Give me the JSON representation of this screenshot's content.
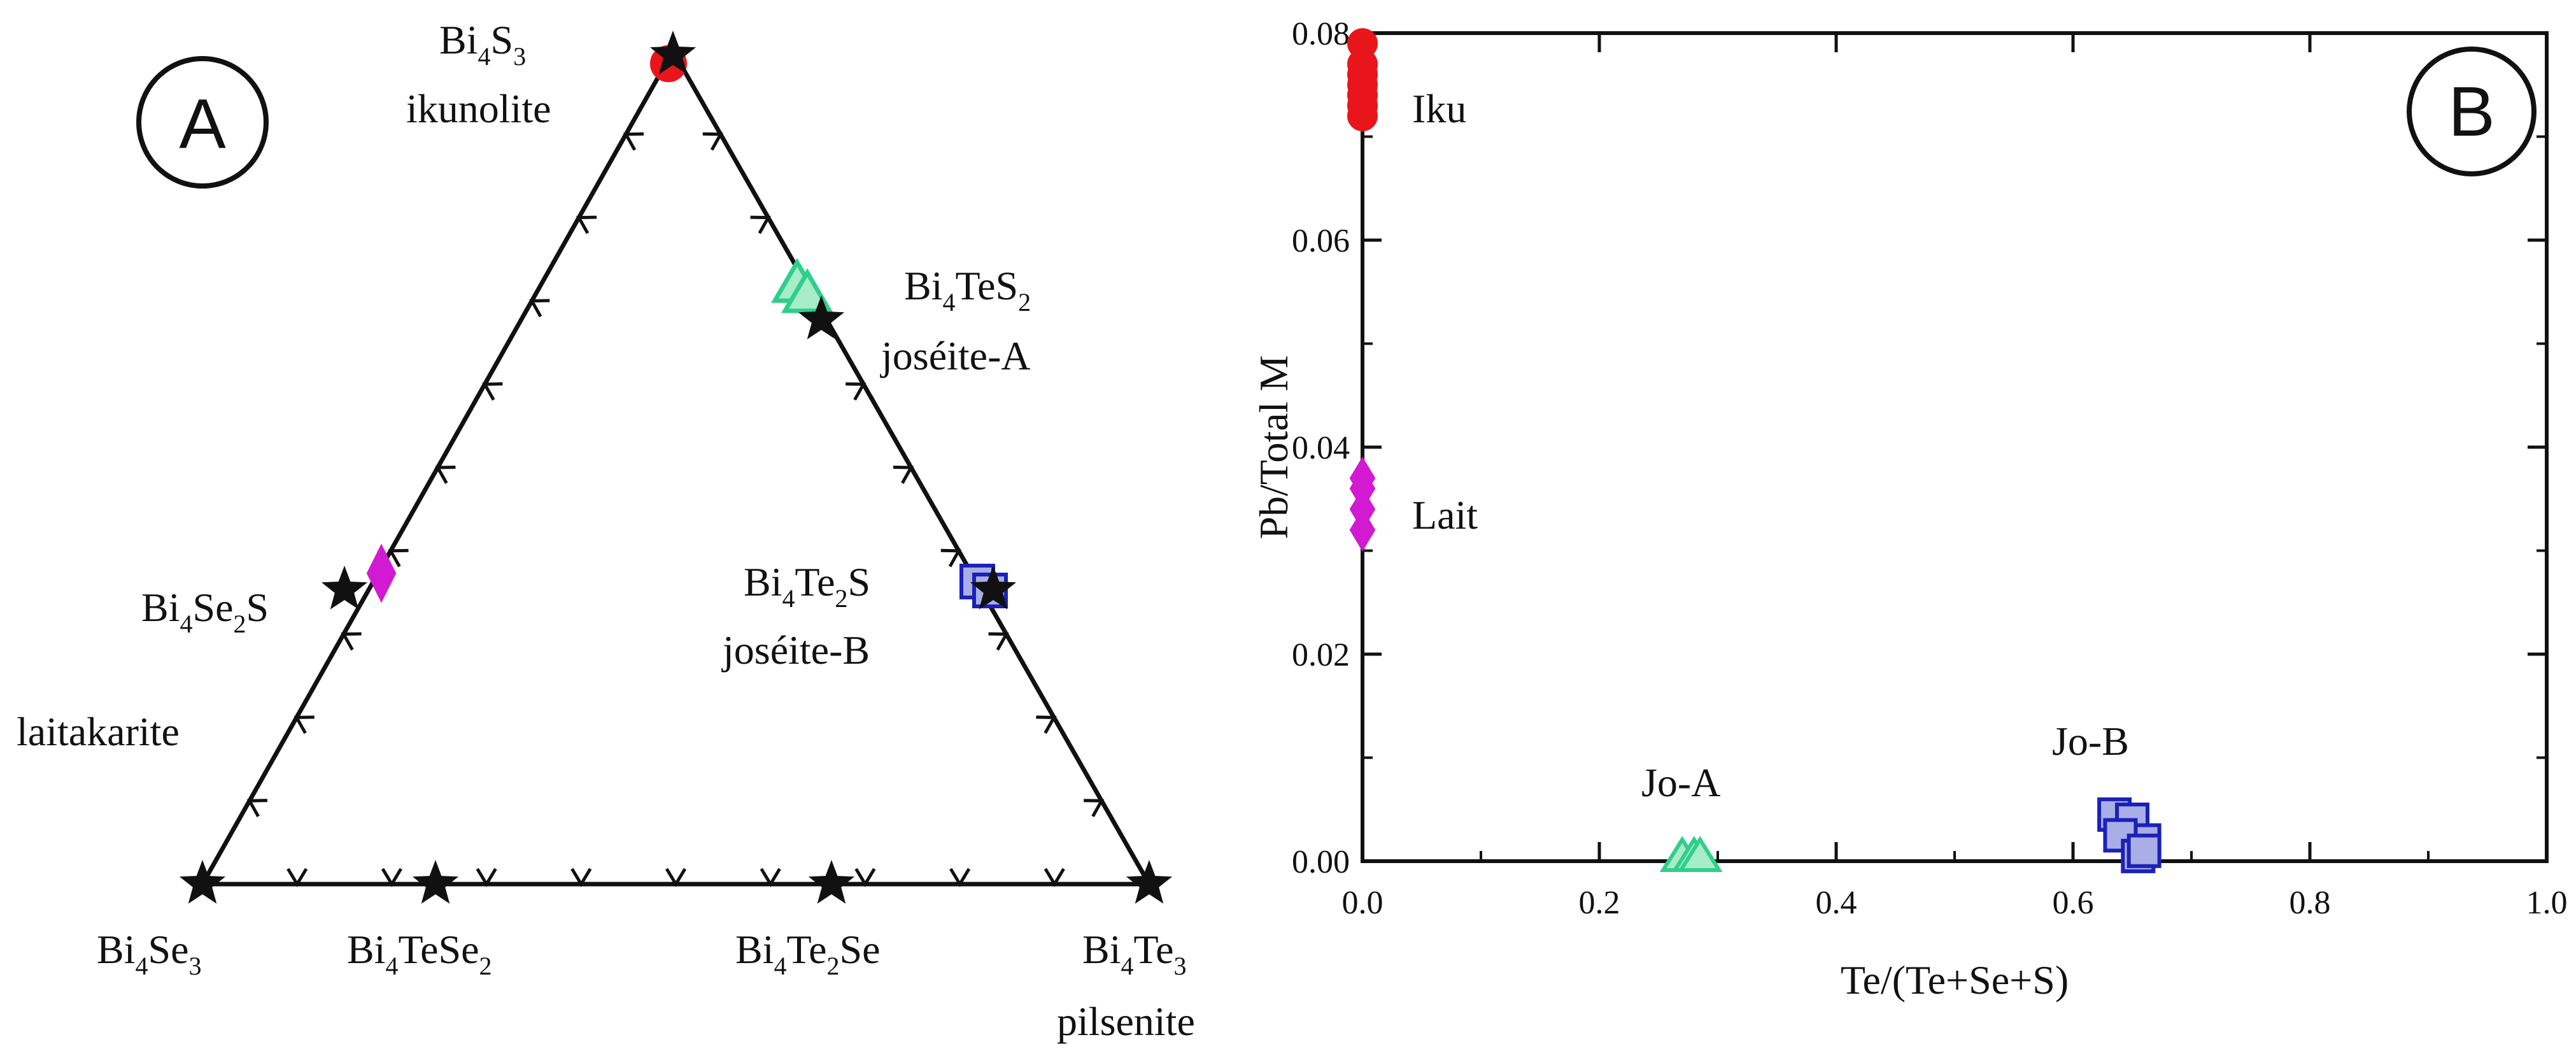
{
  "colors": {
    "ikunolite": "#e8161b",
    "laitakarite": "#d21ad2",
    "joseite_a": "#2fcf8a",
    "joseite_a_fill": "#a8ecc8",
    "joseite_b": "#1b21b8",
    "joseite_b_fill": "#a9aee6",
    "axis": "#111111"
  },
  "panel_a": {
    "panel_label": "A",
    "apex_top": {
      "formula": "Bi4S3",
      "parts": [
        "Bi",
        "4",
        "S",
        "3"
      ],
      "name": "ikunolite"
    },
    "joseite_a": {
      "parts": [
        "Bi",
        "4",
        "TeS",
        "2"
      ],
      "name": "joséite-A"
    },
    "bi4se2s": {
      "parts": [
        "Bi",
        "4",
        "Se",
        "2",
        "S",
        ""
      ]
    },
    "joseite_b": {
      "parts": [
        "Bi",
        "4",
        "Te",
        "2",
        "S",
        ""
      ],
      "name": "joséite-B"
    },
    "laitakarite": "laitakarite",
    "bottom_left": {
      "parts": [
        "Bi",
        "4",
        "Se",
        "3"
      ]
    },
    "bottom_mid1": {
      "parts": [
        "Bi",
        "4",
        "TeSe",
        "2"
      ]
    },
    "bottom_mid2": {
      "parts": [
        "Bi",
        "4",
        "Te",
        "2",
        "Se",
        ""
      ]
    },
    "bottom_right": {
      "parts": [
        "Bi",
        "4",
        "Te",
        "3"
      ],
      "name": "pilsenite"
    }
  },
  "chart_data": {
    "type": "scatter",
    "panel_label": "B",
    "xlabel": "Te/(Te+Se+S)",
    "ylabel": "Pb/Total M",
    "xlim": [
      0.0,
      1.0
    ],
    "ylim": [
      0.0,
      0.08
    ],
    "xticks": [
      "0.0",
      "0.2",
      "0.4",
      "0.6",
      "0.8",
      "1.0"
    ],
    "yticks": [
      "0.00",
      "0.02",
      "0.04",
      "0.06",
      "0.08"
    ],
    "series": [
      {
        "name": "Iku",
        "marker": "circle",
        "x": [
          0.0,
          0.0,
          0.0,
          0.0,
          0.0,
          0.0,
          0.0
        ],
        "y": [
          0.079,
          0.077,
          0.076,
          0.075,
          0.074,
          0.073,
          0.072
        ]
      },
      {
        "name": "Lait",
        "marker": "diamond",
        "x": [
          0.0,
          0.0,
          0.0,
          0.0
        ],
        "y": [
          0.037,
          0.036,
          0.034,
          0.032
        ]
      },
      {
        "name": "Jo-A",
        "marker": "triangle",
        "x": [
          0.27,
          0.28,
          0.285
        ],
        "y": [
          0.0,
          0.0,
          0.0
        ]
      },
      {
        "name": "Jo-B",
        "marker": "square",
        "x": [
          0.635,
          0.65,
          0.66,
          0.64,
          0.655,
          0.66
        ],
        "y": [
          0.0045,
          0.004,
          0.002,
          0.0025,
          0.0005,
          0.001
        ]
      }
    ]
  }
}
